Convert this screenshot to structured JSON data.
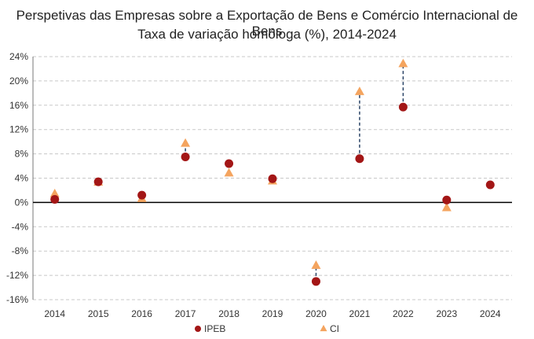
{
  "chart_data": {
    "type": "scatter",
    "title": "Perspetivas das Empresas sobre a Exportação de Bens e Comércio Internacional de Bens",
    "subtitle": "Taxa de variação homóloga (%), 2014-2024",
    "xlabel": "",
    "ylabel": "",
    "categories": [
      "2014",
      "2015",
      "2016",
      "2017",
      "2018",
      "2019",
      "2020",
      "2021",
      "2022",
      "2023",
      "2024"
    ],
    "ylim": [
      -16,
      24
    ],
    "yticks": [
      -16,
      -12,
      -8,
      -4,
      0,
      4,
      8,
      12,
      16,
      20,
      24
    ],
    "ytick_labels": [
      "-16%",
      "-12%",
      "-8%",
      "-4%",
      "0%",
      "4%",
      "8%",
      "12%",
      "16%",
      "20%",
      "24%"
    ],
    "grid": true,
    "legend_position": "bottom",
    "series": [
      {
        "name": "IPEB",
        "marker": "circle",
        "color": "#a31616",
        "values": [
          0.5,
          3.4,
          1.2,
          7.5,
          6.4,
          3.9,
          -13.0,
          7.2,
          15.7,
          0.4,
          2.9
        ]
      },
      {
        "name": "CI",
        "marker": "triangle",
        "color": "#f4a45f",
        "values": [
          1.4,
          3.3,
          0.6,
          9.7,
          4.8,
          3.5,
          -10.4,
          18.2,
          22.8,
          -0.9,
          null
        ]
      }
    ],
    "connectors": {
      "style": "dashed",
      "color": "#2b4466",
      "years": [
        "2017",
        "2020",
        "2021",
        "2022"
      ]
    }
  }
}
